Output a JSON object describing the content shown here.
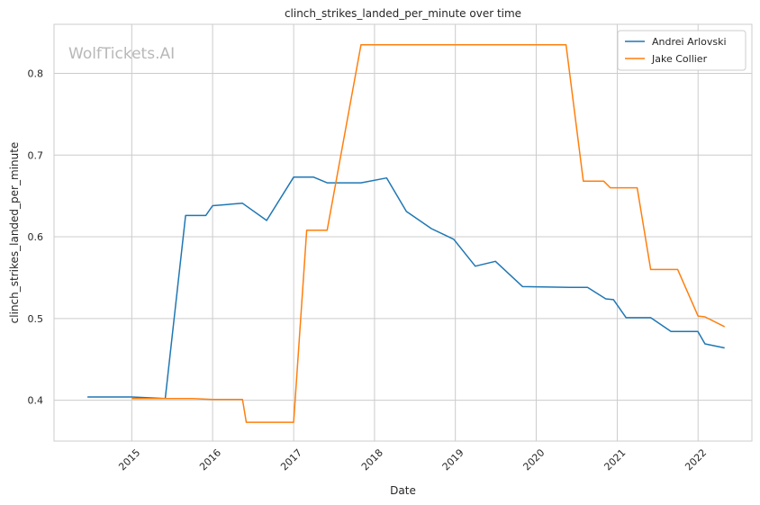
{
  "chart_data": {
    "type": "line",
    "title": "clinch_strikes_landed_per_minute over time",
    "xlabel": "Date",
    "ylabel": "clinch_strikes_landed_per_minute",
    "watermark": "WolfTickets.AI",
    "xlim": [
      "2014-01-15",
      "2022-09-01"
    ],
    "ylim": [
      0.35,
      0.86
    ],
    "xticks": [
      {
        "date": "2015-01-01",
        "label": "2015"
      },
      {
        "date": "2016-01-01",
        "label": "2016"
      },
      {
        "date": "2017-01-01",
        "label": "2017"
      },
      {
        "date": "2018-01-01",
        "label": "2018"
      },
      {
        "date": "2019-01-01",
        "label": "2019"
      },
      {
        "date": "2020-01-01",
        "label": "2020"
      },
      {
        "date": "2021-01-01",
        "label": "2021"
      },
      {
        "date": "2022-01-01",
        "label": "2022"
      }
    ],
    "yticks": [
      {
        "value": 0.4,
        "label": "0.4"
      },
      {
        "value": 0.5,
        "label": "0.5"
      },
      {
        "value": 0.6,
        "label": "0.6"
      },
      {
        "value": 0.7,
        "label": "0.7"
      },
      {
        "value": 0.8,
        "label": "0.8"
      }
    ],
    "grid": true,
    "legend_position": "top-right",
    "series": [
      {
        "name": "Andrei Arlovski",
        "color": "#1f77b4",
        "points": [
          [
            "2014-06-15",
            0.404
          ],
          [
            "2015-01-01",
            0.404
          ],
          [
            "2015-06-01",
            0.402
          ],
          [
            "2015-09-01",
            0.626
          ],
          [
            "2015-12-01",
            0.626
          ],
          [
            "2016-01-01",
            0.638
          ],
          [
            "2016-05-15",
            0.641
          ],
          [
            "2016-09-01",
            0.62
          ],
          [
            "2017-01-01",
            0.673
          ],
          [
            "2017-04-01",
            0.673
          ],
          [
            "2017-06-01",
            0.666
          ],
          [
            "2017-11-01",
            0.666
          ],
          [
            "2018-02-25",
            0.672
          ],
          [
            "2018-05-25",
            0.631
          ],
          [
            "2018-09-15",
            0.61
          ],
          [
            "2018-12-25",
            0.597
          ],
          [
            "2019-04-01",
            0.564
          ],
          [
            "2019-07-01",
            0.57
          ],
          [
            "2019-11-01",
            0.539
          ],
          [
            "2020-06-01",
            0.538
          ],
          [
            "2020-08-20",
            0.538
          ],
          [
            "2020-11-10",
            0.524
          ],
          [
            "2020-12-15",
            0.523
          ],
          [
            "2021-02-10",
            0.501
          ],
          [
            "2021-06-01",
            0.501
          ],
          [
            "2021-09-01",
            0.484
          ],
          [
            "2021-12-31",
            0.484
          ],
          [
            "2022-02-01",
            0.469
          ],
          [
            "2022-05-01",
            0.464
          ]
        ]
      },
      {
        "name": "Jake Collier",
        "color": "#ff7f0e",
        "points": [
          [
            "2015-01-01",
            0.402
          ],
          [
            "2015-10-01",
            0.402
          ],
          [
            "2016-01-01",
            0.401
          ],
          [
            "2016-05-15",
            0.401
          ],
          [
            "2016-06-01",
            0.373
          ],
          [
            "2017-01-01",
            0.373
          ],
          [
            "2017-03-01",
            0.608
          ],
          [
            "2017-06-01",
            0.608
          ],
          [
            "2017-11-01",
            0.835
          ],
          [
            "2020-05-15",
            0.835
          ],
          [
            "2020-08-01",
            0.668
          ],
          [
            "2020-11-01",
            0.668
          ],
          [
            "2020-12-01",
            0.66
          ],
          [
            "2021-04-01",
            0.66
          ],
          [
            "2021-06-01",
            0.56
          ],
          [
            "2021-10-01",
            0.56
          ],
          [
            "2022-01-01",
            0.503
          ],
          [
            "2022-02-01",
            0.502
          ],
          [
            "2022-05-01",
            0.49
          ]
        ]
      }
    ]
  }
}
